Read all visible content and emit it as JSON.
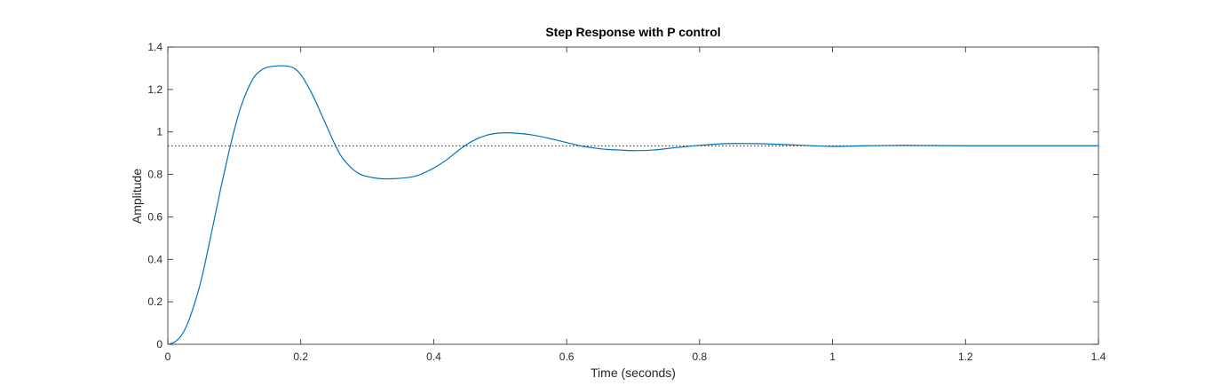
{
  "chart_data": {
    "type": "line",
    "title": "Step Response with P control",
    "xlabel": "Time (seconds)",
    "ylabel": "Amplitude",
    "xlim": [
      0,
      1.4
    ],
    "ylim": [
      0,
      1.4
    ],
    "x_ticks": [
      "0",
      "0.2",
      "0.4",
      "0.6",
      "0.8",
      "1",
      "1.2",
      "1.4"
    ],
    "y_ticks": [
      "0",
      "0.2",
      "0.4",
      "0.6",
      "0.8",
      "1",
      "1.2",
      "1.4"
    ],
    "grid": false,
    "legend": "none",
    "steady_state": 0.935,
    "colors": {
      "series": "#0072BD",
      "reference": "#000000",
      "axes": "#262626"
    },
    "series": [
      {
        "x": [
          0,
          0.01,
          0.02,
          0.03,
          0.04,
          0.05,
          0.06,
          0.07,
          0.08,
          0.09,
          0.1,
          0.11,
          0.12,
          0.13,
          0.14,
          0.15,
          0.16,
          0.17,
          0.18,
          0.19,
          0.2,
          0.21,
          0.22,
          0.23,
          0.24,
          0.25,
          0.26,
          0.27,
          0.28,
          0.29,
          0.3,
          0.32,
          0.34,
          0.36,
          0.37,
          0.38,
          0.4,
          0.42,
          0.44,
          0.46,
          0.48,
          0.5,
          0.52,
          0.55,
          0.58,
          0.6,
          0.62,
          0.64,
          0.66,
          0.68,
          0.7,
          0.73,
          0.76,
          0.8,
          0.84,
          0.88,
          0.91,
          0.95,
          1.0,
          1.05,
          1.1,
          1.15,
          1.2,
          1.25,
          1.3,
          1.35,
          1.4
        ],
        "y": [
          0,
          0.01,
          0.04,
          0.1,
          0.19,
          0.3,
          0.44,
          0.59,
          0.74,
          0.88,
          1.01,
          1.12,
          1.2,
          1.26,
          1.29,
          1.305,
          1.31,
          1.312,
          1.31,
          1.3,
          1.27,
          1.22,
          1.16,
          1.09,
          1.02,
          0.95,
          0.89,
          0.85,
          0.82,
          0.8,
          0.79,
          0.78,
          0.78,
          0.785,
          0.79,
          0.8,
          0.83,
          0.87,
          0.92,
          0.96,
          0.985,
          0.995,
          0.995,
          0.985,
          0.965,
          0.95,
          0.935,
          0.925,
          0.918,
          0.915,
          0.912,
          0.915,
          0.925,
          0.937,
          0.945,
          0.945,
          0.943,
          0.938,
          0.932,
          0.935,
          0.937,
          0.936,
          0.935,
          0.935,
          0.935,
          0.935,
          0.935
        ]
      }
    ]
  }
}
